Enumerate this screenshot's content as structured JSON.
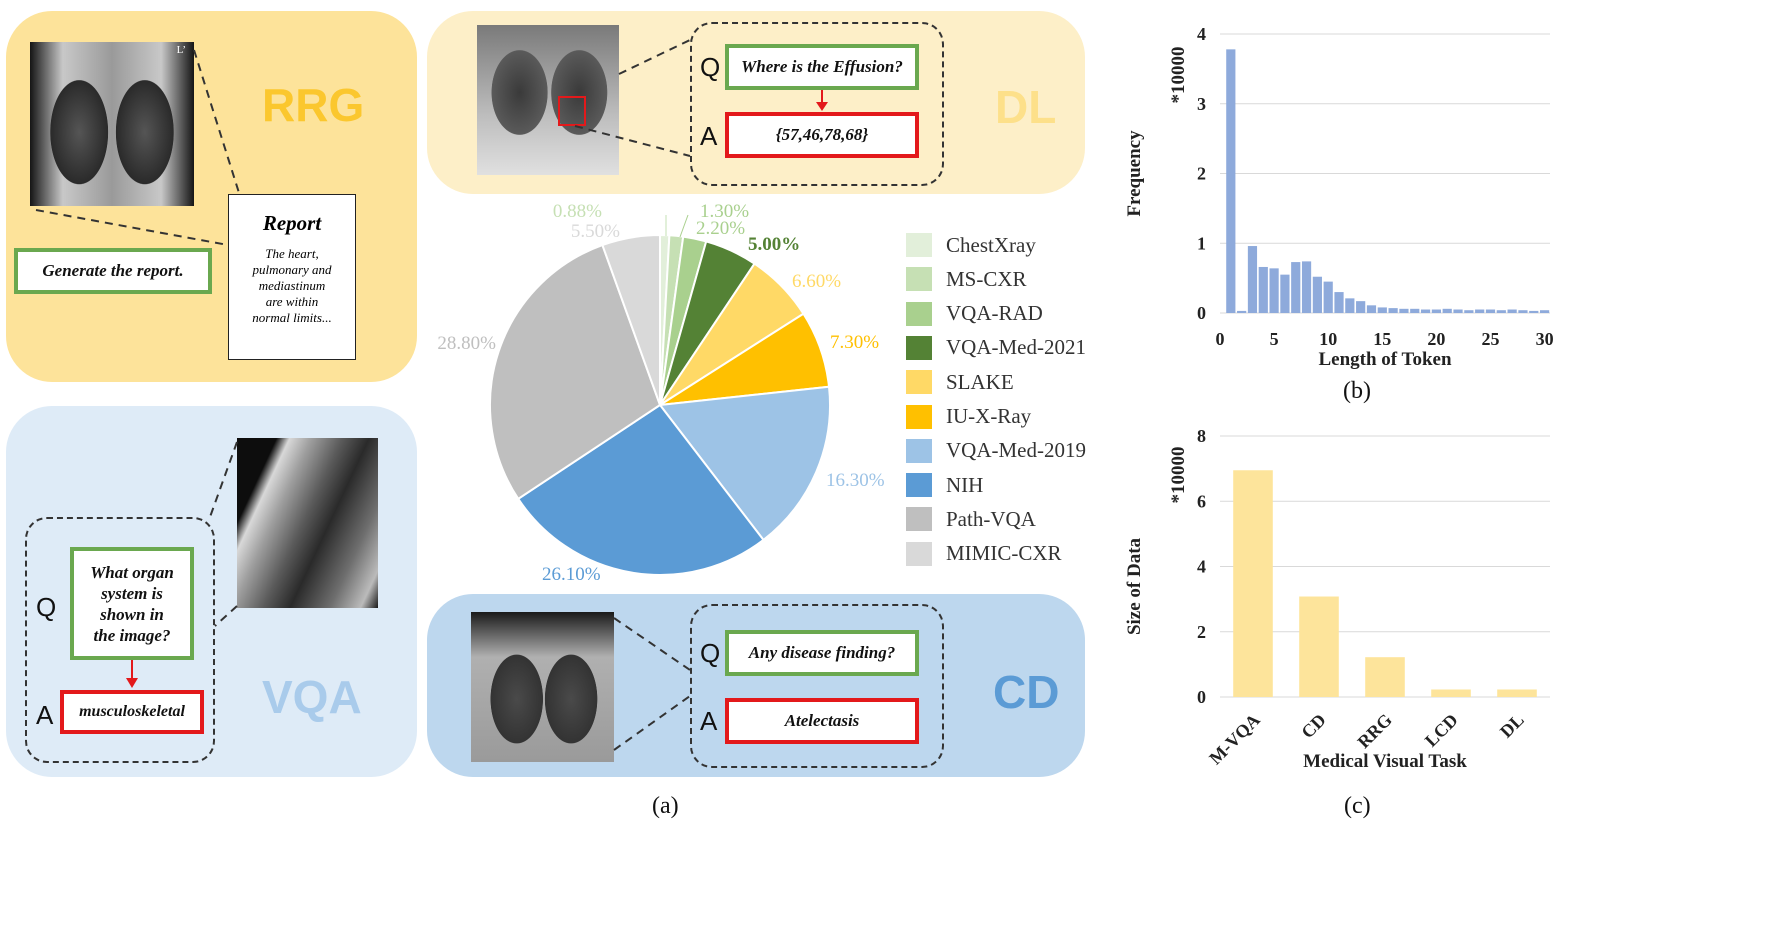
{
  "caption_a": "(a)",
  "caption_b": "(b)",
  "caption_c": "(c)",
  "rrg": {
    "label": "RRG",
    "instruction": "Generate the report.",
    "report_title": "Report",
    "report_lines": [
      "The heart,",
      "pulmonary and",
      "mediastinum",
      "are within",
      "normal limits..."
    ],
    "xray_marker": "L’"
  },
  "dl": {
    "label": "DL",
    "q_letter": "Q",
    "a_letter": "A",
    "question": "Where is the Effusion?",
    "answer": "{57,46,78,68}"
  },
  "vqa": {
    "label": "VQA",
    "q_letter": "Q",
    "a_letter": "A",
    "question_lines": [
      "What organ",
      "system is",
      "shown in",
      "the image?"
    ],
    "answer": "musculoskeletal"
  },
  "cd": {
    "label": "CD",
    "q_letter": "Q",
    "a_letter": "A",
    "question": "Any disease finding?",
    "answer": "Atelectasis"
  },
  "colors": {
    "rrg_panel": "#fde39a",
    "dl_panel": "#fdefc8",
    "vqa_panel": "#deebf7",
    "cd_panel": "#bdd7ee",
    "rrg_text": "#fbc72e",
    "dl_text": "#fde08a",
    "vqa_text": "#a9cbeb",
    "cd_text": "#5b9bd5",
    "hist_bar": "#8eaadb",
    "bar_c": "#fde49b"
  },
  "chart_data": [
    {
      "type": "pie",
      "title": "",
      "labels": [
        "ChestXray",
        "MS-CXR",
        "VQA-RAD",
        "VQA-Med-2021",
        "SLAKE",
        "IU-X-Ray",
        "VQA-Med-2019",
        "NIH",
        "Path-VQA",
        "MIMIC-CXR"
      ],
      "values": [
        0.88,
        1.3,
        2.2,
        5.0,
        6.6,
        7.3,
        16.3,
        26.1,
        28.8,
        5.5
      ],
      "value_labels": [
        "0.88%",
        "1.30%",
        "2.20%",
        "5.00%",
        "6.60%",
        "7.30%",
        "16.30%",
        "26.10%",
        "28.80%",
        "5.50%"
      ],
      "colors": [
        "#e2efda",
        "#c6e0b4",
        "#a9d08e",
        "#548235",
        "#ffd966",
        "#ffc000",
        "#9dc3e6",
        "#5b9bd5",
        "#bfbfbf",
        "#d9d9d9"
      ],
      "label_colors": [
        "#c6e0b4",
        "#a9d08e",
        "#a9d08e",
        "#548235",
        "#ffd966",
        "#ffc000",
        "#9dc3e6",
        "#5b9bd5",
        "#bfbfbf",
        "#d9d9d9"
      ]
    },
    {
      "type": "bar",
      "title": "",
      "xlabel": "Length of Token",
      "ylabel": "Frequency",
      "scale_label": "*10000",
      "x": [
        1,
        2,
        3,
        4,
        5,
        6,
        7,
        8,
        9,
        10,
        11,
        12,
        13,
        14,
        15,
        16,
        17,
        18,
        19,
        20,
        21,
        22,
        23,
        24,
        25,
        26,
        27,
        28,
        29,
        30
      ],
      "values": [
        3.78,
        0.03,
        0.96,
        0.66,
        0.64,
        0.55,
        0.73,
        0.74,
        0.52,
        0.45,
        0.3,
        0.21,
        0.17,
        0.11,
        0.08,
        0.07,
        0.06,
        0.06,
        0.05,
        0.05,
        0.06,
        0.05,
        0.04,
        0.05,
        0.05,
        0.04,
        0.05,
        0.04,
        0.03,
        0.04
      ],
      "xticks": [
        "0",
        "5",
        "10",
        "15",
        "20",
        "25",
        "30"
      ],
      "yticks": [
        "0",
        "1",
        "2",
        "3",
        "4"
      ],
      "xlim": [
        0,
        30.5
      ],
      "ylim": [
        0,
        4
      ]
    },
    {
      "type": "bar",
      "title": "",
      "xlabel": "Medical Visual Task",
      "ylabel": "Size of Data",
      "scale_label": "*10000",
      "categories": [
        "M-VQA",
        "CD",
        "RRG",
        "LCD",
        "DL"
      ],
      "values": [
        6.95,
        3.08,
        1.22,
        0.23,
        0.23
      ],
      "yticks": [
        "0",
        "2",
        "4",
        "6",
        "8"
      ],
      "ylim": [
        0,
        8
      ]
    }
  ]
}
